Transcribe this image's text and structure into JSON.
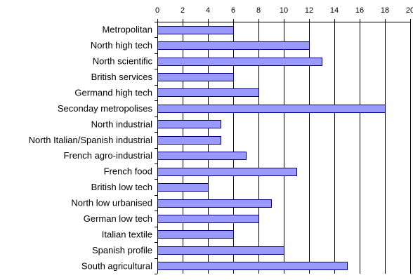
{
  "chart_data": {
    "type": "bar",
    "orientation": "horizontal",
    "categories": [
      "Metropolitan",
      "North high tech",
      "North scientific",
      "British services",
      "Germand high tech",
      "Seconday metropolises",
      "North industrial",
      "North Italian/Spanish industrial",
      "French agro-industrial",
      "French food",
      "British low tech",
      "North low urbanised",
      "German low tech",
      "Italian textile",
      "Spanish profile",
      "South agricultural"
    ],
    "values": [
      6,
      12,
      13,
      6,
      8,
      18,
      5,
      5,
      7,
      11,
      4,
      9,
      8,
      6,
      10,
      15
    ],
    "title": "",
    "xlabel": "",
    "ylabel": "",
    "xlim": [
      0,
      20
    ],
    "xticks": [
      0,
      2,
      4,
      6,
      8,
      10,
      12,
      14,
      16,
      18,
      20
    ],
    "x_axis_position": "top",
    "grid": "vertical",
    "legend": "none",
    "bar_color": "#9999ff",
    "bar_edge_color": "#000080"
  }
}
